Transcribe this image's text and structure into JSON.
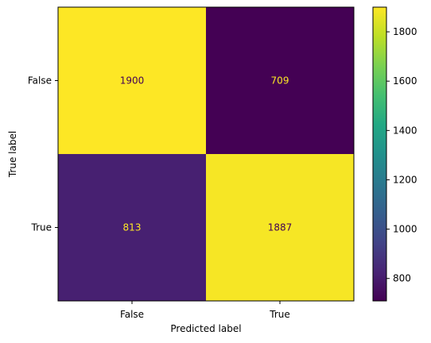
{
  "chart_data": {
    "type": "heatmap",
    "xlabel": "Predicted label",
    "ylabel": "True label",
    "x_categories": [
      "False",
      "True"
    ],
    "y_categories": [
      "False",
      "True"
    ],
    "values": [
      [
        1900,
        709
      ],
      [
        813,
        1887
      ]
    ],
    "colormap": "viridis",
    "color_range": [
      709,
      1900
    ],
    "colorbar_ticks": [
      "800",
      "1000",
      "1200",
      "1400",
      "1600",
      "1800"
    ],
    "colorbar_tick_values": [
      800,
      1000,
      1200,
      1400,
      1600,
      1800
    ],
    "text_color_on_dark": "#fde725",
    "text_color_on_light": "#440154",
    "grid": false
  }
}
